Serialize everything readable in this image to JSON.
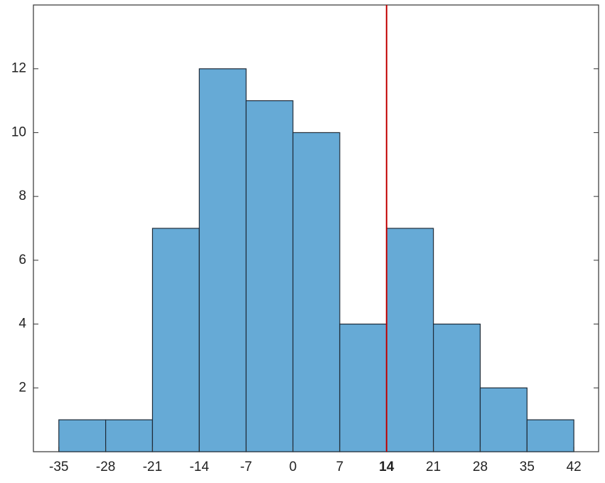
{
  "chart_data": {
    "type": "histogram",
    "bins": [
      -35,
      -28,
      -21,
      -14,
      -7,
      0,
      7,
      14,
      21,
      28,
      35,
      42
    ],
    "values": [
      1,
      1,
      7,
      12,
      11,
      10,
      4,
      7,
      4,
      2,
      1
    ],
    "color": "#66aad6",
    "xlim": [
      -38.8,
      45.7
    ],
    "xticks": [
      -35,
      -28,
      -21,
      -14,
      -7,
      0,
      7,
      14,
      21,
      28,
      35,
      42
    ],
    "ylim": [
      0,
      14
    ],
    "yticks": [
      2,
      4,
      6,
      8,
      10,
      12
    ],
    "vline": {
      "value": 14,
      "color": "#c00000"
    }
  }
}
